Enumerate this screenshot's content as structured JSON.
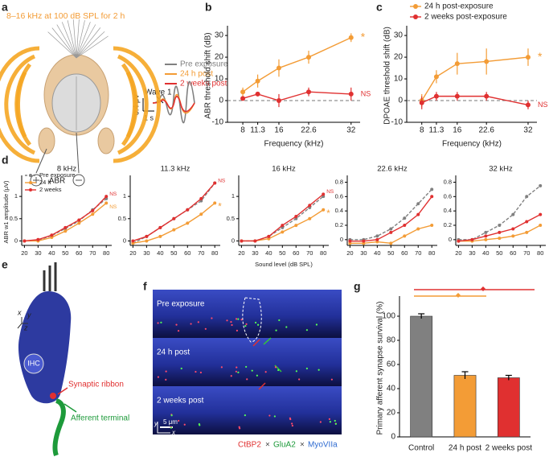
{
  "panel_labels": [
    "a",
    "b",
    "c",
    "d",
    "e",
    "f",
    "g"
  ],
  "panel_a": {
    "exposure": "8–16 kHz at 100 dB SPL for 2 h",
    "legend": [
      "Pre exposure",
      "24 h post",
      "2 weeks post"
    ],
    "wave": "Wave 1",
    "scale_v": "0.4 μV",
    "scale_t": "1 s",
    "recording": "ABR"
  },
  "panel_e": {
    "cell": "IHC",
    "ribbon": "Synaptic ribbon",
    "terminal": "Afferent terminal",
    "axes": [
      "x",
      "y",
      "z"
    ]
  },
  "panel_f": {
    "rows": [
      "Pre exposure",
      "24 h post",
      "2 weeks post"
    ],
    "scale": "5 μm",
    "axes": [
      "y",
      "x"
    ],
    "stains": [
      "CtBP2",
      "GluA2",
      "MyoVIIa"
    ],
    "separator": "×"
  },
  "chart_data": [
    {
      "type": "line",
      "ylabel": "ABR threshold shift (dB)",
      "xlabel": "Frequency (kHz)",
      "x": [
        8,
        11.3,
        16,
        22.6,
        32
      ],
      "xlim": [
        4.6,
        34
      ],
      "xticks": [
        8,
        11.3,
        16,
        22.6,
        32
      ],
      "ylim": [
        -10,
        33
      ],
      "yticks": [
        -10,
        0,
        10,
        20,
        30
      ],
      "ref_line": 0,
      "series": [
        {
          "color": "#f39c36",
          "values": [
            4,
            9,
            15,
            20,
            29
          ],
          "errors": [
            2,
            3,
            4,
            3,
            2
          ],
          "end_label": "*"
        },
        {
          "color": "#e03030",
          "values": [
            1,
            3,
            0,
            4,
            3
          ],
          "errors": [
            1,
            1,
            3,
            2,
            3
          ],
          "end_label": "NS"
        }
      ]
    },
    {
      "type": "line",
      "ylabel": "DPOAE threshold shift (dB)",
      "xlabel": "Frequency (kHz)",
      "x": [
        8,
        11.3,
        16,
        22.6,
        32
      ],
      "xlim": [
        4.6,
        34
      ],
      "xticks": [
        8,
        11.3,
        16,
        22.6,
        32
      ],
      "ylim": [
        -10,
        33
      ],
      "yticks": [
        -10,
        0,
        10,
        20,
        30
      ],
      "ref_line": 0,
      "legend": "upper left",
      "series": [
        {
          "name": "24 h post-exposure",
          "color": "#f39c36",
          "values": [
            0,
            11,
            17,
            18,
            20
          ],
          "errors": [
            3,
            3,
            5,
            6,
            4
          ],
          "end_label": "*"
        },
        {
          "name": "2 weeks post-exposure",
          "color": "#e03030",
          "values": [
            -1,
            2,
            2,
            2,
            -2
          ],
          "errors": [
            3,
            2,
            2,
            2,
            2
          ],
          "end_label": "NS"
        }
      ]
    },
    {
      "type": "line",
      "title": "8 kHz",
      "ylabel": "ABR w1 amplitude (μV)",
      "x": [
        20,
        30,
        40,
        50,
        60,
        70,
        80
      ],
      "xlim": [
        18,
        84
      ],
      "xticks": [
        20,
        30,
        40,
        50,
        60,
        70,
        80
      ],
      "ylim": [
        -0.1,
        1.4
      ],
      "yticks": [
        0,
        0.5,
        1
      ],
      "legend": "upper left",
      "series": [
        {
          "name": "Pre exposure",
          "color": "#808080",
          "dash": true,
          "values": [
            0,
            0.02,
            0.12,
            0.28,
            0.45,
            0.7,
            0.95
          ]
        },
        {
          "name": "24 h",
          "color": "#f39c36",
          "values": [
            0,
            0,
            0.08,
            0.22,
            0.4,
            0.6,
            0.85
          ],
          "end_label": "NS"
        },
        {
          "name": "2 weeks",
          "color": "#e03030",
          "values": [
            0,
            0.03,
            0.13,
            0.3,
            0.47,
            0.68,
            1.0
          ],
          "end_label": "NS"
        }
      ]
    },
    {
      "type": "line",
      "title": "11.3 kHz",
      "x": [
        20,
        30,
        40,
        50,
        60,
        70,
        80
      ],
      "xlim": [
        18,
        84
      ],
      "xticks": [
        20,
        30,
        40,
        50,
        60,
        70,
        80
      ],
      "ylim": [
        -0.1,
        1.4
      ],
      "yticks": [
        0,
        0.5,
        1
      ],
      "series": [
        {
          "color": "#808080",
          "dash": true,
          "values": [
            -0.05,
            0.1,
            0.3,
            0.5,
            0.7,
            0.9,
            1.3
          ]
        },
        {
          "color": "#f39c36",
          "values": [
            -0.05,
            0,
            0.1,
            0.25,
            0.4,
            0.6,
            0.85
          ],
          "end_label": "*"
        },
        {
          "color": "#e03030",
          "values": [
            0,
            0.1,
            0.3,
            0.5,
            0.7,
            0.95,
            1.3
          ],
          "end_label": "NS"
        }
      ]
    },
    {
      "type": "line",
      "title": "16 kHz",
      "xlabel": "Sound level (dB SPL)",
      "x": [
        20,
        30,
        40,
        50,
        60,
        70,
        80
      ],
      "xlim": [
        18,
        84
      ],
      "xticks": [
        20,
        30,
        40,
        50,
        60,
        70,
        80
      ],
      "ylim": [
        -0.1,
        1.4
      ],
      "yticks": [
        0,
        0.5,
        1
      ],
      "series": [
        {
          "color": "#808080",
          "dash": true,
          "values": [
            0,
            0,
            0.1,
            0.3,
            0.5,
            0.75,
            1.0
          ]
        },
        {
          "color": "#f39c36",
          "values": [
            0,
            0,
            0.05,
            0.2,
            0.35,
            0.5,
            0.7
          ],
          "end_label": "*"
        },
        {
          "color": "#e03030",
          "values": [
            0,
            0,
            0.1,
            0.35,
            0.55,
            0.8,
            1.05
          ],
          "end_label": "NS"
        }
      ]
    },
    {
      "type": "line",
      "title": "22.6 kHz",
      "x": [
        20,
        30,
        40,
        50,
        60,
        70,
        80
      ],
      "xlim": [
        18,
        84
      ],
      "xticks": [
        20,
        30,
        40,
        50,
        60,
        70,
        80
      ],
      "ylim": [
        -0.08,
        0.85
      ],
      "yticks": [
        0,
        0.2,
        0.4,
        0.6,
        0.8
      ],
      "series": [
        {
          "color": "#808080",
          "dash": true,
          "values": [
            0,
            0,
            0.05,
            0.15,
            0.3,
            0.5,
            0.7
          ]
        },
        {
          "color": "#f39c36",
          "values": [
            -0.05,
            -0.05,
            -0.03,
            -0.05,
            0.05,
            0.15,
            0.2
          ]
        },
        {
          "color": "#e03030",
          "values": [
            -0.02,
            -0.02,
            0,
            0.1,
            0.2,
            0.35,
            0.6
          ]
        }
      ]
    },
    {
      "type": "line",
      "title": "32 kHz",
      "x": [
        20,
        30,
        40,
        50,
        60,
        70,
        80
      ],
      "xlim": [
        18,
        84
      ],
      "xticks": [
        20,
        30,
        40,
        50,
        60,
        70,
        80
      ],
      "ylim": [
        -0.08,
        0.85
      ],
      "yticks": [
        0,
        0.2,
        0.4,
        0.6,
        0.8
      ],
      "series": [
        {
          "color": "#808080",
          "dash": true,
          "values": [
            0,
            0,
            0.1,
            0.2,
            0.35,
            0.6,
            0.75
          ]
        },
        {
          "color": "#f39c36",
          "values": [
            -0.02,
            -0.02,
            0,
            0.02,
            0.05,
            0.1,
            0.2
          ]
        },
        {
          "color": "#e03030",
          "values": [
            -0.02,
            0,
            0.05,
            0.1,
            0.15,
            0.25,
            0.35
          ]
        }
      ]
    },
    {
      "type": "bar",
      "ylabel": "Primary afferent synapse survival (%)",
      "categories": [
        "Control",
        "24 h post",
        "2 weeks post"
      ],
      "values": [
        100,
        51,
        49
      ],
      "errors": [
        2,
        3,
        2
      ],
      "colors": [
        "#808080",
        "#f39c36",
        "#e03030"
      ],
      "ylim": [
        0,
        114
      ],
      "yticks": [
        0,
        20,
        40,
        60,
        80,
        100
      ]
    }
  ]
}
